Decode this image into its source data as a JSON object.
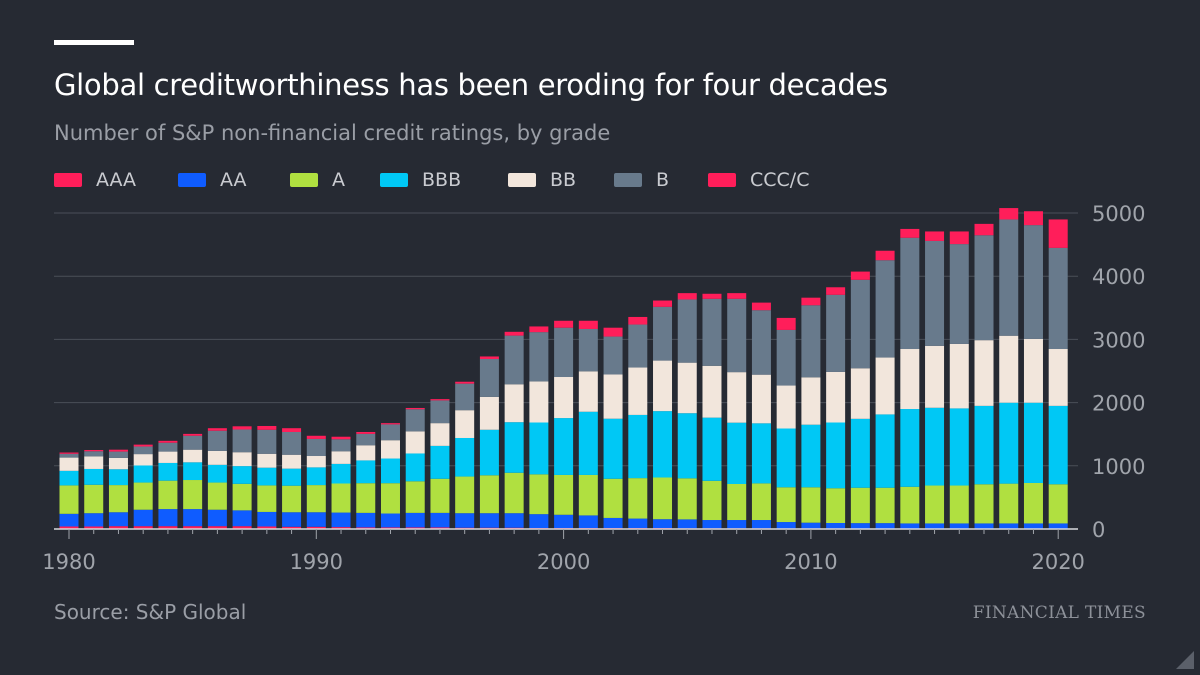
{
  "header": {
    "title": "Global creditworthiness has been eroding for four decades",
    "subtitle": "Number of S&P non-financial credit ratings, by grade"
  },
  "footer": {
    "source": "Source: S&P Global",
    "brand": "FINANCIAL TIMES"
  },
  "colors": {
    "background": "#262a33",
    "AAA": "#ff1e5a",
    "AA": "#0f5cff",
    "A": "#b0e040",
    "BBB": "#00c8f5",
    "BB": "#f2e6dc",
    "B": "#687a8c",
    "CCC/C": "#ff1e5a",
    "grid": "#4a4f58",
    "axis_text": "#a0a4ab"
  },
  "chart_data": {
    "type": "bar",
    "stacked": true,
    "title": "Global creditworthiness has been eroding for four decades",
    "subtitle": "Number of S&P non-financial credit ratings, by grade",
    "xlabel": "",
    "ylabel": "",
    "ylim": [
      0,
      5000
    ],
    "yticks": [
      0,
      1000,
      2000,
      3000,
      4000,
      5000
    ],
    "xticks": [
      1980,
      1990,
      2000,
      2010,
      2020
    ],
    "legend_position": "top-left",
    "grid": true,
    "categories": [
      1980,
      1981,
      1982,
      1983,
      1984,
      1985,
      1986,
      1987,
      1988,
      1989,
      1990,
      1991,
      1992,
      1993,
      1994,
      1995,
      1996,
      1997,
      1998,
      1999,
      2000,
      2001,
      2002,
      2003,
      2004,
      2005,
      2006,
      2007,
      2008,
      2009,
      2010,
      2011,
      2012,
      2013,
      2014,
      2015,
      2016,
      2017,
      2018,
      2019,
      2020
    ],
    "series": [
      {
        "name": "AAA",
        "values": [
          40,
          40,
          45,
          45,
          45,
          45,
          45,
          45,
          40,
          35,
          35,
          30,
          25,
          25,
          25,
          25,
          20,
          20,
          20,
          15,
          15,
          15,
          15,
          15,
          15,
          12,
          12,
          12,
          12,
          10,
          10,
          10,
          8,
          8,
          8,
          8,
          8,
          8,
          8,
          8,
          8
        ]
      },
      {
        "name": "AA",
        "values": [
          200,
          210,
          220,
          260,
          270,
          270,
          260,
          250,
          230,
          230,
          230,
          230,
          230,
          220,
          230,
          230,
          230,
          230,
          230,
          220,
          210,
          200,
          160,
          150,
          140,
          140,
          130,
          130,
          130,
          100,
          90,
          85,
          85,
          85,
          80,
          80,
          80,
          80,
          80,
          80,
          80
        ]
      },
      {
        "name": "A",
        "values": [
          450,
          450,
          430,
          430,
          450,
          460,
          430,
          420,
          420,
          420,
          430,
          460,
          470,
          480,
          500,
          540,
          580,
          600,
          640,
          630,
          630,
          640,
          620,
          640,
          660,
          650,
          620,
          570,
          580,
          550,
          560,
          550,
          560,
          560,
          580,
          600,
          600,
          620,
          630,
          640,
          620
        ]
      },
      {
        "name": "BBB",
        "values": [
          230,
          250,
          250,
          270,
          280,
          280,
          280,
          280,
          280,
          270,
          280,
          310,
          360,
          390,
          440,
          520,
          610,
          720,
          800,
          820,
          900,
          1000,
          950,
          1000,
          1050,
          1030,
          1000,
          970,
          950,
          930,
          990,
          1040,
          1090,
          1160,
          1230,
          1230,
          1220,
          1240,
          1280,
          1270,
          1240
        ]
      },
      {
        "name": "BB",
        "values": [
          210,
          200,
          180,
          180,
          180,
          200,
          220,
          220,
          220,
          220,
          180,
          200,
          240,
          290,
          350,
          360,
          440,
          520,
          600,
          650,
          650,
          640,
          700,
          750,
          800,
          800,
          820,
          800,
          770,
          680,
          750,
          800,
          800,
          900,
          950,
          980,
          1020,
          1040,
          1060,
          1010,
          900
        ]
      },
      {
        "name": "B",
        "values": [
          60,
          80,
          100,
          120,
          140,
          220,
          320,
          360,
          380,
          360,
          270,
          190,
          180,
          250,
          350,
          360,
          420,
          600,
          770,
          780,
          780,
          670,
          600,
          680,
          850,
          1000,
          1060,
          1160,
          1020,
          880,
          1140,
          1220,
          1400,
          1540,
          1760,
          1660,
          1580,
          1660,
          1840,
          1800,
          1600
        ]
      },
      {
        "name": "CCC/C",
        "values": [
          20,
          20,
          30,
          30,
          30,
          30,
          40,
          50,
          60,
          60,
          50,
          40,
          30,
          20,
          20,
          20,
          30,
          40,
          60,
          90,
          110,
          130,
          140,
          120,
          100,
          100,
          80,
          90,
          120,
          190,
          120,
          120,
          130,
          150,
          140,
          150,
          200,
          180,
          180,
          220,
          450
        ]
      }
    ]
  }
}
